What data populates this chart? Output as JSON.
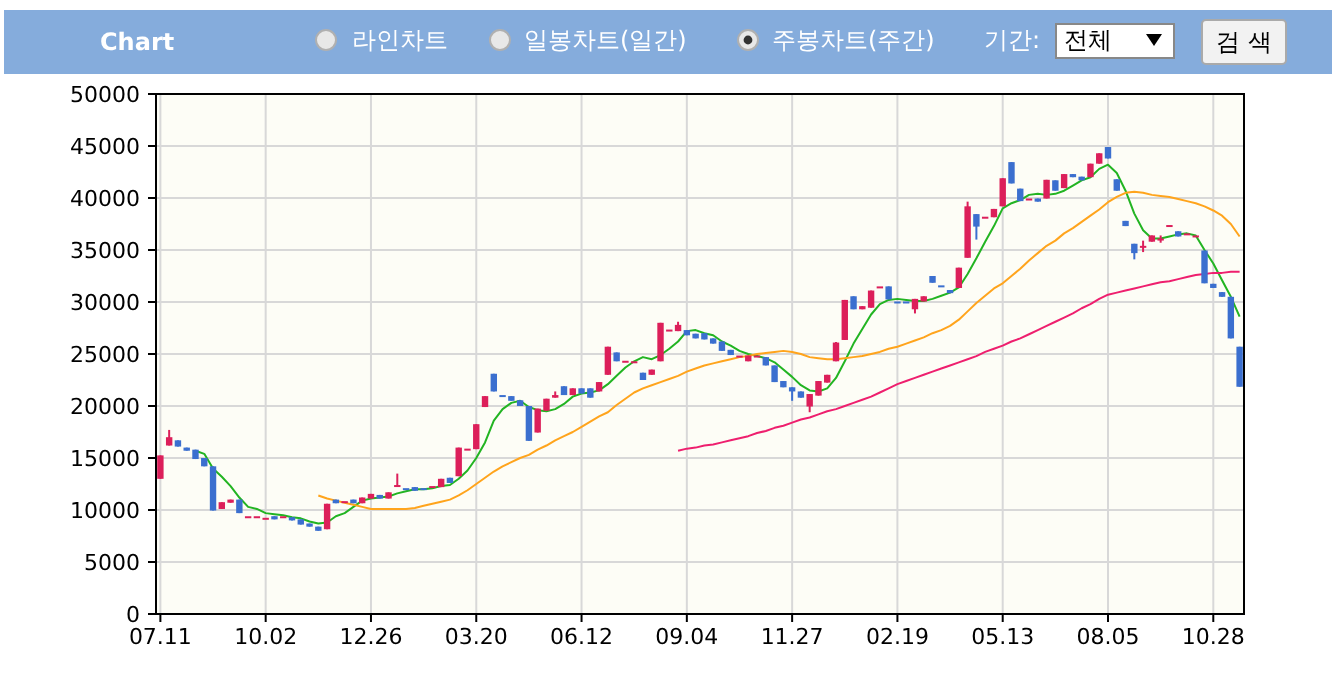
{
  "chart_data": {
    "type": "candlestick",
    "title": "Chart",
    "annotations": [
      "라인차트",
      "일봉차트(일간)",
      "주봉차트(주간)",
      "기간:",
      "전체",
      "검 색"
    ],
    "categories": [
      "07.11",
      null,
      null,
      null,
      null,
      null,
      null,
      null,
      null,
      null,
      null,
      null,
      "10.02",
      null,
      null,
      null,
      null,
      null,
      null,
      null,
      null,
      null,
      null,
      null,
      "12.26",
      null,
      null,
      null,
      null,
      null,
      null,
      null,
      null,
      null,
      null,
      null,
      "03.20",
      null,
      null,
      null,
      null,
      null,
      null,
      null,
      null,
      null,
      null,
      null,
      "06.12",
      null,
      null,
      null,
      null,
      null,
      null,
      null,
      null,
      null,
      null,
      null,
      "09.04",
      null,
      null,
      null,
      null,
      null,
      null,
      null,
      null,
      null,
      null,
      null,
      "11.27",
      null,
      null,
      null,
      null,
      null,
      null,
      null,
      null,
      null,
      null,
      null,
      "02.19",
      null,
      null,
      null,
      null,
      null,
      null,
      null,
      null,
      null,
      null,
      null,
      "05.13",
      null,
      null,
      null,
      null,
      null,
      null,
      null,
      null,
      null,
      null,
      null,
      "08.05",
      null,
      null,
      null,
      null,
      null,
      null,
      null,
      null,
      null,
      null,
      null,
      "10.28",
      null,
      null,
      null
    ],
    "ohlc": [
      [
        13000,
        15250,
        13000,
        15250
      ],
      [
        16200,
        17700,
        16200,
        17000
      ],
      [
        16700,
        16700,
        16100,
        16100
      ],
      [
        16000,
        16000,
        15700,
        15700
      ],
      [
        15800,
        15800,
        14900,
        14900
      ],
      [
        15000,
        15000,
        14200,
        14200
      ],
      [
        14200,
        14200,
        9950,
        9950
      ],
      [
        10100,
        10750,
        10100,
        10750
      ],
      [
        10700,
        11000,
        10700,
        11000
      ],
      [
        11000,
        11000,
        9700,
        9700
      ],
      [
        9400,
        9400,
        9400,
        9400
      ],
      [
        9400,
        9400,
        9400,
        9400
      ],
      [
        9250,
        9250,
        9250,
        9250
      ],
      [
        9400,
        9400,
        9100,
        9100
      ],
      [
        9400,
        9400,
        9400,
        9400
      ],
      [
        9300,
        9300,
        9000,
        9000
      ],
      [
        9100,
        9100,
        8600,
        8600
      ],
      [
        8700,
        8700,
        8400,
        8400
      ],
      [
        8400,
        8400,
        8000,
        8000
      ],
      [
        8150,
        10600,
        8150,
        10600
      ],
      [
        11000,
        11000,
        10650,
        10650
      ],
      [
        10850,
        10850,
        10850,
        10850
      ],
      [
        11000,
        11000,
        10650,
        10650
      ],
      [
        10650,
        11200,
        10650,
        11200
      ],
      [
        11100,
        11550,
        11100,
        11550
      ],
      [
        11450,
        11450,
        11100,
        11100
      ],
      [
        11100,
        11700,
        11100,
        11700
      ],
      [
        12300,
        13500,
        12300,
        12400
      ],
      [
        12100,
        12100,
        12100,
        12100
      ],
      [
        12200,
        12200,
        11850,
        11850
      ],
      [
        12100,
        12100,
        12100,
        12100
      ],
      [
        12300,
        12300,
        12300,
        12300
      ],
      [
        12200,
        13000,
        12200,
        13000
      ],
      [
        13100,
        13100,
        12600,
        12600
      ],
      [
        13250,
        16000,
        13250,
        16000
      ],
      [
        15900,
        15900,
        15900,
        15900
      ],
      [
        15850,
        18250,
        15850,
        18250
      ],
      [
        19900,
        20950,
        19900,
        20950
      ],
      [
        23100,
        23100,
        21400,
        21400
      ],
      [
        21050,
        21050,
        21050,
        21050
      ],
      [
        20950,
        20950,
        20500,
        20500
      ],
      [
        20550,
        20550,
        20000,
        20000
      ],
      [
        20000,
        20000,
        16650,
        16650
      ],
      [
        17450,
        19750,
        17450,
        19750
      ],
      [
        19550,
        20700,
        19550,
        20700
      ],
      [
        20800,
        21400,
        20800,
        21050
      ],
      [
        21900,
        21900,
        21050,
        21050
      ],
      [
        21050,
        21700,
        21050,
        21700
      ],
      [
        21700,
        21700,
        21200,
        21200
      ],
      [
        21700,
        21700,
        20800,
        20800
      ],
      [
        21400,
        22300,
        21400,
        22300
      ],
      [
        23000,
        25700,
        23000,
        25700
      ],
      [
        25150,
        25150,
        24300,
        24300
      ],
      [
        24350,
        24350,
        24350,
        24350
      ],
      [
        24300,
        24300,
        24300,
        24300
      ],
      [
        23200,
        23200,
        22500,
        22500
      ],
      [
        23000,
        23500,
        23000,
        23500
      ],
      [
        24300,
        28000,
        24300,
        28000
      ],
      [
        27350,
        27350,
        27350,
        27350
      ],
      [
        27200,
        28100,
        27200,
        27800
      ],
      [
        27300,
        27300,
        26800,
        26800
      ],
      [
        26950,
        26950,
        26500,
        26500
      ],
      [
        27000,
        27000,
        26400,
        26400
      ],
      [
        26500,
        26500,
        26000,
        26000
      ],
      [
        26200,
        26200,
        25300,
        25300
      ],
      [
        25400,
        25400,
        24900,
        24900
      ],
      [
        24850,
        24850,
        24850,
        24850
      ],
      [
        24300,
        24850,
        24300,
        24850
      ],
      [
        24850,
        24850,
        24850,
        24850
      ],
      [
        24700,
        24700,
        23900,
        23900
      ],
      [
        23900,
        23900,
        22300,
        22300
      ],
      [
        22400,
        22400,
        21800,
        21800
      ],
      [
        21800,
        21800,
        20500,
        21400
      ],
      [
        21400,
        21400,
        20800,
        20800
      ],
      [
        19950,
        21150,
        19400,
        21150
      ],
      [
        21000,
        22400,
        21000,
        22400
      ],
      [
        22250,
        23000,
        22250,
        23000
      ],
      [
        24300,
        26150,
        24300,
        26100
      ],
      [
        26350,
        30200,
        26350,
        30200
      ],
      [
        30550,
        30550,
        29300,
        29300
      ],
      [
        29300,
        29600,
        29300,
        29600
      ],
      [
        29450,
        31100,
        29450,
        31100
      ],
      [
        31500,
        31500,
        31500,
        31500
      ],
      [
        31500,
        31500,
        30250,
        30250
      ],
      [
        30050,
        30050,
        30050,
        30050
      ],
      [
        30050,
        30050,
        30050,
        30050
      ],
      [
        29300,
        30300,
        28900,
        30300
      ],
      [
        30050,
        30550,
        30050,
        30550
      ],
      [
        32500,
        32500,
        31850,
        31850
      ],
      [
        31600,
        31600,
        31600,
        31600
      ],
      [
        31150,
        31150,
        30850,
        30850
      ],
      [
        31350,
        33300,
        31350,
        33300
      ],
      [
        34250,
        39650,
        34250,
        39200
      ],
      [
        38450,
        38450,
        36000,
        37250
      ],
      [
        38200,
        38200,
        38200,
        38200
      ],
      [
        38150,
        38950,
        38150,
        38950
      ],
      [
        39200,
        41900,
        39200,
        41900
      ],
      [
        43450,
        43450,
        41400,
        41400
      ],
      [
        40900,
        40900,
        39700,
        39700
      ],
      [
        39950,
        39950,
        39950,
        39950
      ],
      [
        39950,
        39950,
        39650,
        39650
      ],
      [
        39950,
        41750,
        39950,
        41750
      ],
      [
        41700,
        41700,
        40700,
        40700
      ],
      [
        40950,
        42300,
        40950,
        42300
      ],
      [
        42300,
        42300,
        42000,
        42000
      ],
      [
        42050,
        42050,
        41700,
        41700
      ],
      [
        42000,
        43300,
        42000,
        43300
      ],
      [
        43300,
        44300,
        43300,
        44300
      ],
      [
        44900,
        44900,
        43800,
        43800
      ],
      [
        41800,
        41800,
        40700,
        40700
      ],
      [
        37800,
        37800,
        37300,
        37300
      ],
      [
        35600,
        35600,
        34100,
        34700
      ],
      [
        35300,
        35900,
        34800,
        35400
      ],
      [
        35800,
        36400,
        35800,
        36400
      ],
      [
        36000,
        36400,
        35700,
        36100
      ],
      [
        37400,
        37400,
        37400,
        37400
      ],
      [
        36800,
        36800,
        36300,
        36300
      ],
      [
        36600,
        36600,
        36600,
        36600
      ],
      [
        36400,
        36400,
        36400,
        36400
      ],
      [
        34950,
        34950,
        31800,
        31800
      ],
      [
        31750,
        31750,
        31350,
        31350
      ],
      [
        30950,
        30950,
        30500,
        30500
      ],
      [
        30500,
        30500,
        26500,
        26500
      ],
      [
        25700,
        25700,
        21850,
        21850
      ]
    ],
    "colors": [
      "#dc1f5a",
      "#dc1f5a",
      "#3b6fcf",
      "#3b6fcf",
      "#3b6fcf",
      "#3b6fcf",
      "#3b6fcf",
      "#dc1f5a",
      "#dc1f5a",
      "#3b6fcf",
      "#dc1f5a",
      "#dc1f5a",
      "#dc1f5a",
      "#3b6fcf",
      "#dc1f5a",
      "#3b6fcf",
      "#3b6fcf",
      "#3b6fcf",
      "#3b6fcf",
      "#dc1f5a",
      "#3b6fcf",
      "#dc1f5a",
      "#3b6fcf",
      "#dc1f5a",
      "#dc1f5a",
      "#3b6fcf",
      "#dc1f5a",
      "#dc1f5a",
      "#3b6fcf",
      "#3b6fcf",
      "#3b6fcf",
      "#dc1f5a",
      "#dc1f5a",
      "#3b6fcf",
      "#dc1f5a",
      "#dc1f5a",
      "#dc1f5a",
      "#dc1f5a",
      "#3b6fcf",
      "#3b6fcf",
      "#3b6fcf",
      "#3b6fcf",
      "#3b6fcf",
      "#dc1f5a",
      "#dc1f5a",
      "#dc1f5a",
      "#3b6fcf",
      "#dc1f5a",
      "#3b6fcf",
      "#3b6fcf",
      "#dc1f5a",
      "#dc1f5a",
      "#3b6fcf",
      "#dc1f5a",
      "#dc1f5a",
      "#3b6fcf",
      "#dc1f5a",
      "#dc1f5a",
      "#dc1f5a",
      "#dc1f5a",
      "#3b6fcf",
      "#3b6fcf",
      "#3b6fcf",
      "#3b6fcf",
      "#3b6fcf",
      "#3b6fcf",
      "#dc1f5a",
      "#dc1f5a",
      "#dc1f5a",
      "#3b6fcf",
      "#3b6fcf",
      "#3b6fcf",
      "#3b6fcf",
      "#3b6fcf",
      "#dc1f5a",
      "#dc1f5a",
      "#dc1f5a",
      "#dc1f5a",
      "#dc1f5a",
      "#3b6fcf",
      "#dc1f5a",
      "#dc1f5a",
      "#dc1f5a",
      "#3b6fcf",
      "#3b6fcf",
      "#3b6fcf",
      "#dc1f5a",
      "#dc1f5a",
      "#3b6fcf",
      "#3b6fcf",
      "#3b6fcf",
      "#dc1f5a",
      "#dc1f5a",
      "#3b6fcf",
      "#dc1f5a",
      "#dc1f5a",
      "#dc1f5a",
      "#3b6fcf",
      "#3b6fcf",
      "#dc1f5a",
      "#3b6fcf",
      "#dc1f5a",
      "#3b6fcf",
      "#dc1f5a",
      "#3b6fcf",
      "#3b6fcf",
      "#dc1f5a",
      "#dc1f5a",
      "#3b6fcf",
      "#3b6fcf",
      "#3b6fcf",
      "#3b6fcf",
      "#dc1f5a",
      "#dc1f5a",
      "#dc1f5a",
      "#dc1f5a",
      "#3b6fcf",
      "#dc1f5a",
      "#dc1f5a",
      "#3b6fcf",
      "#3b6fcf",
      "#3b6fcf",
      "#3b6fcf",
      "#3b6fcf"
    ],
    "series": [
      {
        "type": "line",
        "color": "#22b422",
        "values": [
          null,
          null,
          null,
          null,
          15700,
          15400,
          14000,
          13200,
          12300,
          11200,
          10300,
          10100,
          9700,
          9600,
          9500,
          9300,
          9200,
          8900,
          8700,
          8800,
          9400,
          9700,
          10300,
          10900,
          11100,
          11200,
          11300,
          11600,
          11800,
          12000,
          12000,
          12100,
          12300,
          12400,
          13000,
          13800,
          15000,
          16500,
          18600,
          19700,
          20300,
          20500,
          19900,
          19600,
          19500,
          19700,
          20200,
          20900,
          21200,
          21300,
          21500,
          22100,
          22900,
          23700,
          24300,
          24700,
          24500,
          24900,
          25500,
          26200,
          27200,
          27300,
          27000,
          26800,
          26200,
          25800,
          25300,
          25000,
          24800,
          24600,
          24200,
          23500,
          22800,
          22000,
          21500,
          21400,
          21700,
          22700,
          24300,
          26000,
          27400,
          28800,
          29800,
          30200,
          30300,
          30200,
          30100,
          30100,
          30300,
          30600,
          30900,
          31400,
          32700,
          34200,
          35800,
          37300,
          39000,
          39500,
          39800,
          40300,
          40400,
          40300,
          40400,
          40700,
          41200,
          41700,
          42000,
          42800,
          43200,
          42400,
          40700,
          38500,
          36900,
          36100,
          36100,
          36300,
          36500,
          36600,
          36400,
          35000,
          33700,
          32100,
          30500,
          28600
        ]
      },
      {
        "type": "line",
        "color": "#ffa41c",
        "values": [
          null,
          null,
          null,
          null,
          null,
          null,
          null,
          null,
          null,
          null,
          null,
          null,
          null,
          null,
          null,
          null,
          null,
          null,
          11400,
          11100,
          10900,
          10700,
          10500,
          10300,
          10100,
          10100,
          10100,
          10100,
          10100,
          10200,
          10400,
          10600,
          10800,
          11000,
          11400,
          11900,
          12500,
          13100,
          13700,
          14200,
          14600,
          15000,
          15300,
          15800,
          16200,
          16700,
          17100,
          17500,
          18000,
          18500,
          19000,
          19400,
          20100,
          20700,
          21300,
          21700,
          22000,
          22300,
          22600,
          22900,
          23300,
          23600,
          23900,
          24100,
          24300,
          24500,
          24700,
          24800,
          25000,
          25100,
          25200,
          25300,
          25200,
          25000,
          24700,
          24600,
          24500,
          24500,
          24600,
          24700,
          24800,
          25000,
          25200,
          25500,
          25700,
          26000,
          26300,
          26600,
          27000,
          27300,
          27700,
          28300,
          29100,
          29900,
          30600,
          31300,
          31800,
          32500,
          33200,
          34000,
          34700,
          35400,
          35900,
          36600,
          37100,
          37700,
          38300,
          38900,
          39600,
          40100,
          40500,
          40600,
          40500,
          40300,
          40200,
          40100,
          39900,
          39700,
          39500,
          39200,
          38800,
          38300,
          37500,
          36300
        ]
      },
      {
        "type": "line",
        "color": "#ee1f6e",
        "values": [
          null,
          null,
          null,
          null,
          null,
          null,
          null,
          null,
          null,
          null,
          null,
          null,
          null,
          null,
          null,
          null,
          null,
          null,
          null,
          null,
          null,
          null,
          null,
          null,
          null,
          null,
          null,
          null,
          null,
          null,
          null,
          null,
          null,
          null,
          null,
          null,
          null,
          null,
          null,
          null,
          null,
          null,
          null,
          null,
          null,
          null,
          null,
          null,
          null,
          null,
          null,
          null,
          null,
          null,
          null,
          null,
          null,
          null,
          null,
          15700,
          15900,
          16000,
          16200,
          16300,
          16500,
          16700,
          16900,
          17100,
          17400,
          17600,
          17900,
          18100,
          18400,
          18700,
          18900,
          19200,
          19500,
          19700,
          20000,
          20300,
          20600,
          20900,
          21300,
          21700,
          22100,
          22400,
          22700,
          23000,
          23300,
          23600,
          23900,
          24200,
          24500,
          24800,
          25200,
          25500,
          25800,
          26200,
          26500,
          26900,
          27300,
          27700,
          28100,
          28500,
          28900,
          29400,
          29800,
          30300,
          30700,
          30900,
          31100,
          31300,
          31500,
          31700,
          31900,
          32000,
          32200,
          32400,
          32600,
          32700,
          32800,
          32800,
          32900,
          32900
        ]
      }
    ],
    "ylim": [
      0,
      50000
    ],
    "yticks": [
      0,
      5000,
      10000,
      15000,
      20000,
      25000,
      30000,
      35000,
      40000,
      45000,
      50000
    ],
    "grid": true
  }
}
